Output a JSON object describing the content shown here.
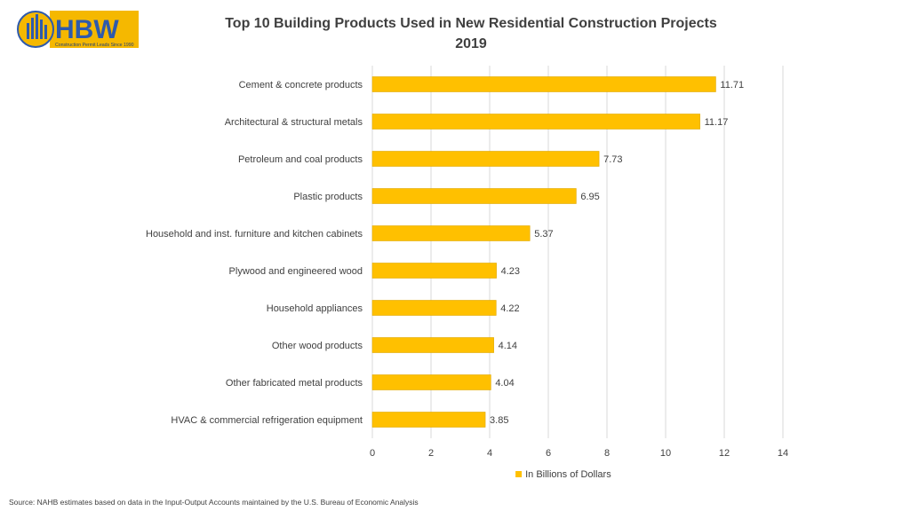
{
  "logo": {
    "text": "HBW",
    "tagline": "Construction Permit Leads Since 1990"
  },
  "source_note": "Source: NAHB estimates based on data in the Input-Output Accounts maintained by the U.S. Bureau of Economic Analysis",
  "colors": {
    "bar": "#FFC000",
    "bar_edge": "#E0A800",
    "grid": "#D9D9D9",
    "text": "#404040"
  },
  "chart_data": {
    "type": "bar",
    "orientation": "horizontal",
    "title": "Top 10 Building Products Used in New Residential Construction Projects",
    "subtitle": "2019",
    "categories": [
      "Cement & concrete products",
      "Architectural & structural metals",
      "Petroleum and coal products",
      "Plastic products",
      "Household and inst. furniture and kitchen cabinets",
      "Plywood and engineered wood",
      "Household appliances",
      "Other wood products",
      "Other fabricated metal products",
      "HVAC & commercial refrigeration equipment"
    ],
    "values": [
      11.71,
      11.17,
      7.73,
      6.95,
      5.37,
      4.23,
      4.22,
      4.14,
      4.04,
      3.85
    ],
    "value_labels": [
      "11.71",
      "11.17",
      "7.73",
      "6.95",
      "5.37",
      "4.23",
      "4.22",
      "4.14",
      "4.04",
      "3.85"
    ],
    "xlim": [
      0,
      14
    ],
    "xticks": [
      "0",
      "2",
      "4",
      "6",
      "8",
      "10",
      "12",
      "14"
    ],
    "grid": true,
    "legend": {
      "position": "bottom",
      "label": "In Billions of Dollars"
    }
  }
}
